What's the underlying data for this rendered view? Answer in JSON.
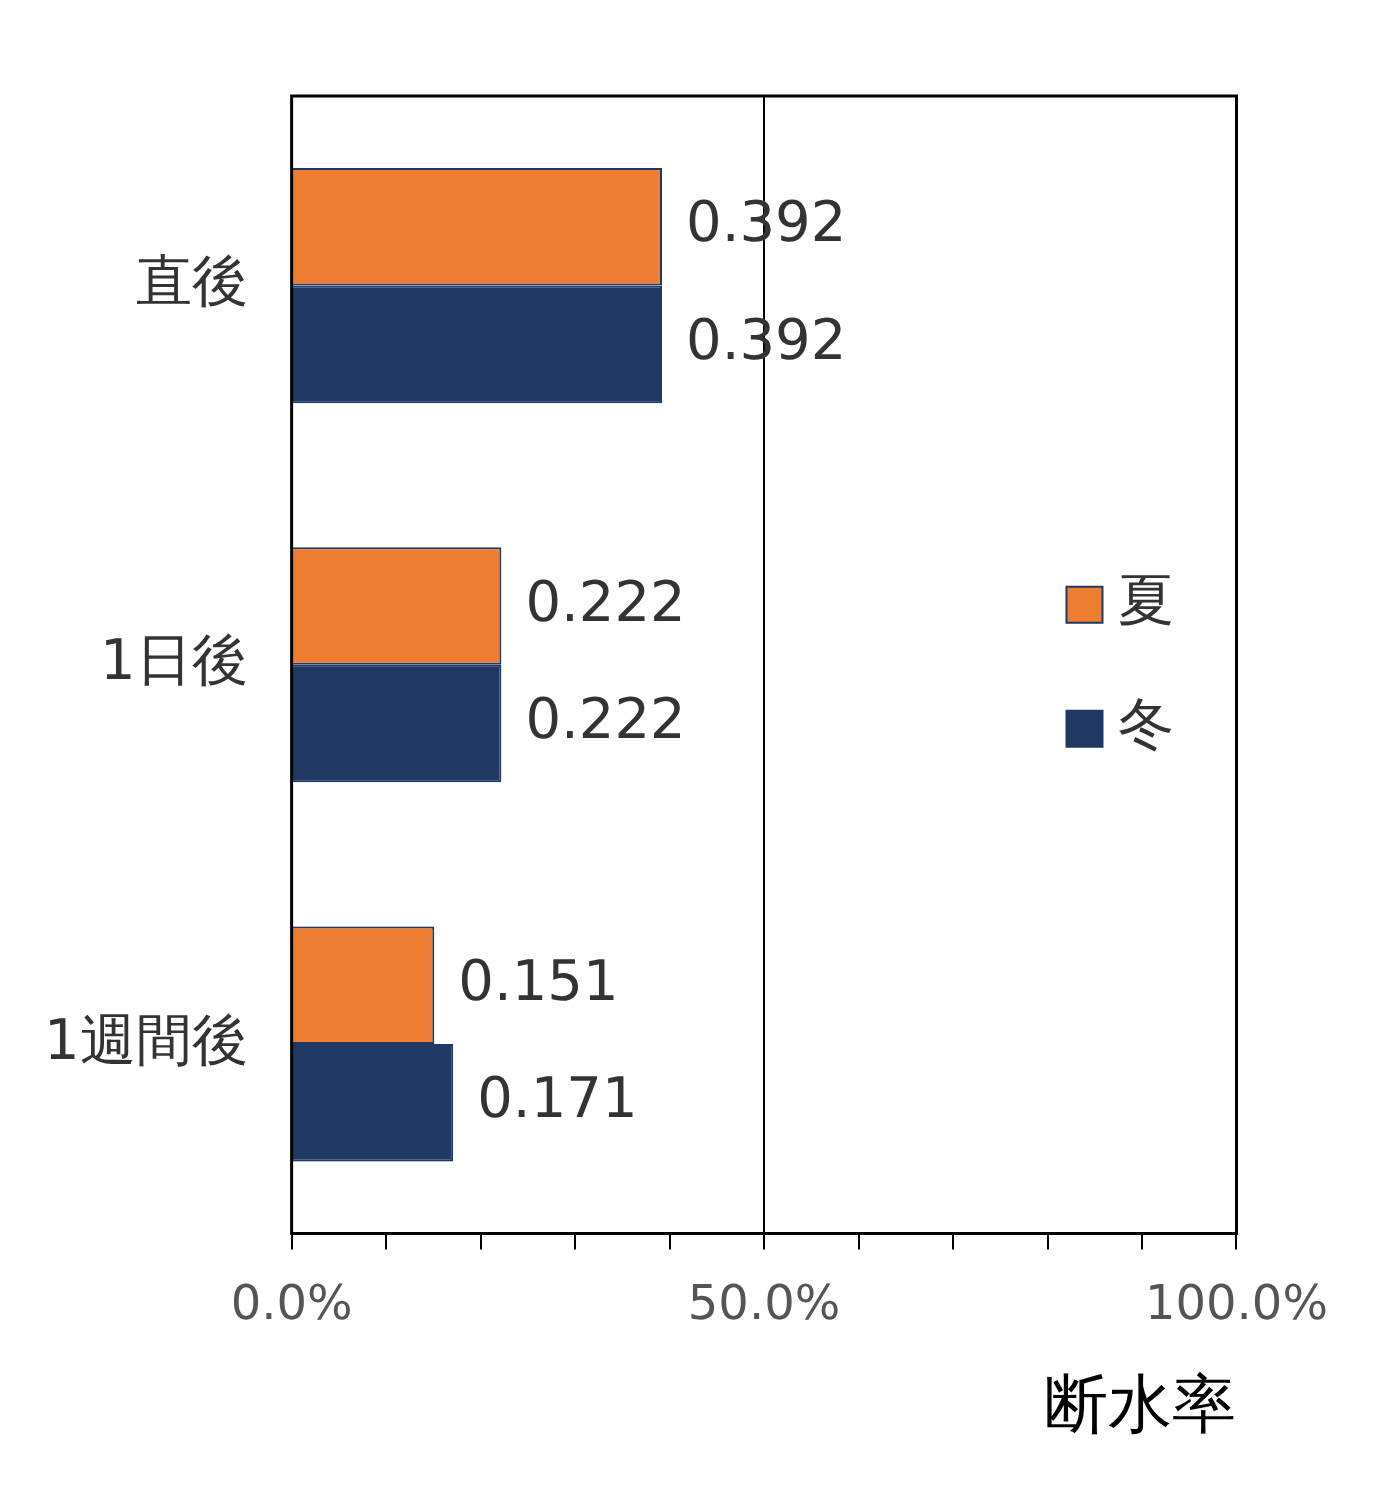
{
  "chart_data": {
    "type": "bar",
    "orientation": "horizontal",
    "xlabel": "断水率",
    "categories": [
      "直後",
      "1日後",
      "1週間後"
    ],
    "series": [
      {
        "name": "夏",
        "color": "#ed7d31",
        "values": [
          0.392,
          0.222,
          0.151
        ]
      },
      {
        "name": "冬",
        "color": "#1f3864",
        "values": [
          0.392,
          0.222,
          0.171
        ]
      }
    ],
    "xlim": [
      0,
      1
    ],
    "xticks": [
      {
        "value": 0,
        "label": "0.0%"
      },
      {
        "value": 0.1,
        "label": null
      },
      {
        "value": 0.2,
        "label": null
      },
      {
        "value": 0.3,
        "label": null
      },
      {
        "value": 0.4,
        "label": null
      },
      {
        "value": 0.5,
        "label": "50.0%"
      },
      {
        "value": 0.6,
        "label": null
      },
      {
        "value": 0.7,
        "label": null
      },
      {
        "value": 0.8,
        "label": null
      },
      {
        "value": 0.9,
        "label": null
      },
      {
        "value": 1,
        "label": "100.0%"
      }
    ],
    "grid": "x",
    "legend": "right",
    "data_labels": true
  }
}
